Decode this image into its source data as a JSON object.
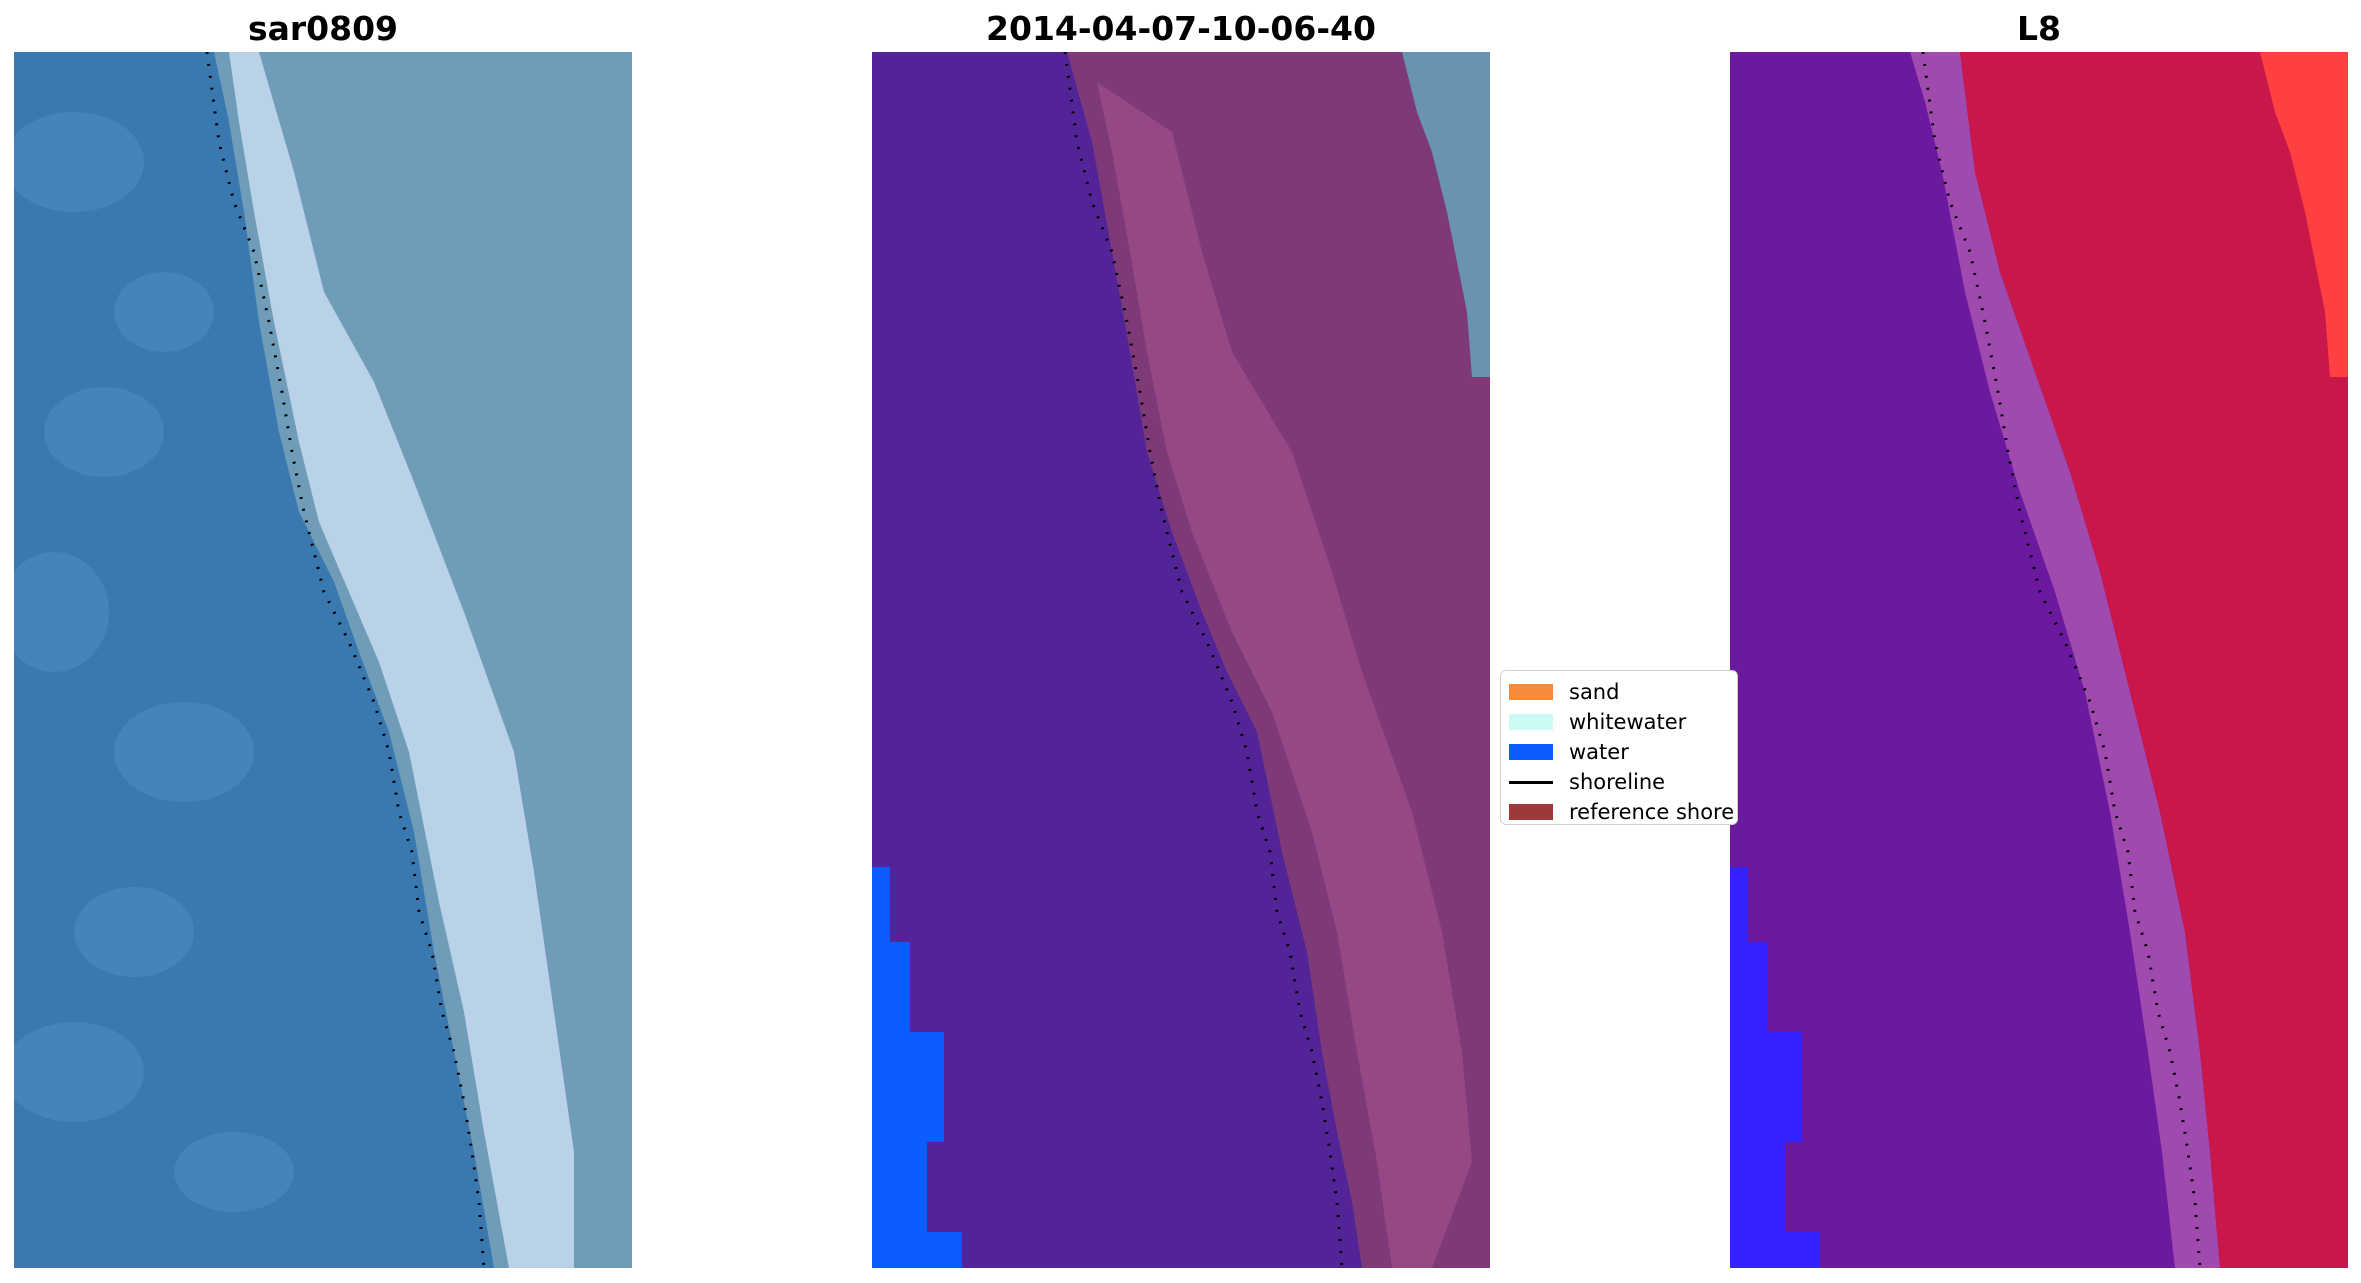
{
  "titles": {
    "left": "sar0809",
    "middle": "2014-04-07-10-06-40",
    "right": "L8"
  },
  "legend": {
    "items": [
      {
        "label": "sand",
        "kind": "patch",
        "color": "#f58a3a"
      },
      {
        "label": "whitewater",
        "kind": "patch",
        "color": "#ccfaf5"
      },
      {
        "label": "water",
        "kind": "patch",
        "color": "#0a5cff"
      },
      {
        "label": "shoreline",
        "kind": "line",
        "color": "#000000"
      },
      {
        "label": "reference shore",
        "kind": "patch",
        "color": "#9c3a3a"
      }
    ]
  },
  "colors": {
    "left_water": "#3a78b0",
    "left_water_light": "#4a8cc4",
    "left_land": "#6f9cb8",
    "left_surf": "#c8dcef",
    "middle_water": "#522497",
    "middle_land": "#7e3a78",
    "middle_land_light": "#a9548f",
    "middle_water_class": "#0a5cff",
    "middle_greyblue": "#6a93b0",
    "right_water": "#6b1aa0",
    "right_land": "#c8174a",
    "right_land_light": "#e0243c",
    "right_bright": "#ff4040",
    "right_blue": "#3322ff",
    "shoreline": "#000000"
  }
}
